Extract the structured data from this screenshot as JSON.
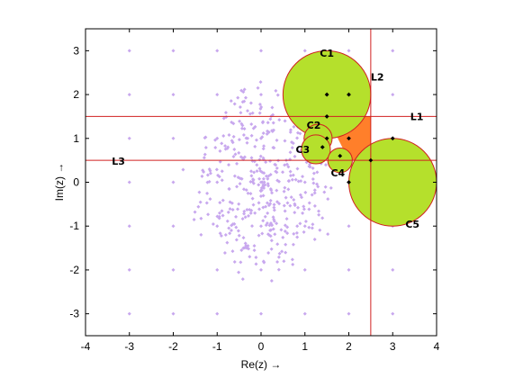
{
  "chart_data": {
    "type": "scatter",
    "xlabel": "Re(z) →",
    "ylabel": "Im(z) →",
    "xlim": [
      -4,
      4
    ],
    "ylim": [
      -3.5,
      3.5
    ],
    "x_ticks": [
      -4,
      -3,
      -2,
      -1,
      0,
      1,
      2,
      3,
      4
    ],
    "y_ticks": [
      -3,
      -2,
      -1,
      0,
      1,
      2,
      3
    ],
    "x_tick_labels": [
      "-4",
      "-3",
      "-2",
      "-1",
      "0",
      "1",
      "2",
      "3",
      "4"
    ],
    "y_tick_labels": [
      "-3",
      "-2",
      "-1",
      "0",
      "1",
      "2",
      "3"
    ],
    "grid": false,
    "colors": {
      "points": "#c8a8ee",
      "circle_fill": "#b5e02c",
      "circle_edge": "#d02020",
      "lines": "#d02020",
      "region": "#ff7f2a",
      "centers": "#000000"
    },
    "background_points": {
      "grid_x": [
        -3,
        -2,
        -1,
        0,
        1,
        2,
        3
      ],
      "grid_y": [
        -3,
        -2,
        -1,
        0,
        1,
        2,
        3
      ],
      "cloud_center": [
        0,
        0
      ],
      "cloud_radius": 1.4,
      "cloud_count": 420
    },
    "circles": [
      {
        "label": "C1",
        "center": [
          1.5,
          2.0
        ],
        "radius": 1.0,
        "label_pos": [
          1.5,
          2.95
        ]
      },
      {
        "label": "C2",
        "center": [
          1.3,
          1.0
        ],
        "radius": 0.32,
        "label_pos": [
          1.2,
          1.3
        ]
      },
      {
        "label": "C3",
        "center": [
          1.25,
          0.75
        ],
        "radius": 0.33,
        "label_pos": [
          0.95,
          0.75
        ]
      },
      {
        "label": "C4",
        "center": [
          1.8,
          0.5
        ],
        "radius": 0.28,
        "label_pos": [
          1.75,
          0.22
        ]
      },
      {
        "label": "C5",
        "center": [
          3.0,
          0.0
        ],
        "radius": 1.0,
        "label_pos": [
          3.45,
          -0.95
        ]
      }
    ],
    "lines": [
      {
        "label": "L1",
        "orientation": "horizontal",
        "value": 1.5,
        "label_pos": [
          3.55,
          1.5
        ]
      },
      {
        "label": "L2",
        "orientation": "vertical",
        "value": 2.5,
        "label_pos": [
          2.65,
          2.4
        ]
      },
      {
        "label": "L3",
        "orientation": "horizontal",
        "value": 0.5,
        "label_pos": [
          -3.25,
          0.48
        ]
      }
    ],
    "center_points": [
      [
        1.5,
        2.0
      ],
      [
        2.0,
        2.0
      ],
      [
        1.5,
        1.5
      ],
      [
        1.5,
        1.0
      ],
      [
        2.0,
        1.0
      ],
      [
        1.4,
        0.8
      ],
      [
        1.8,
        0.6
      ],
      [
        2.0,
        0.0
      ],
      [
        3.0,
        1.0
      ],
      [
        2.5,
        0.5
      ]
    ],
    "shaded_region_polygon": [
      [
        1.6,
        1.5
      ],
      [
        2.5,
        1.5
      ],
      [
        2.5,
        0.5
      ],
      [
        2.0,
        0.5
      ],
      [
        1.75,
        1.0
      ]
    ]
  }
}
